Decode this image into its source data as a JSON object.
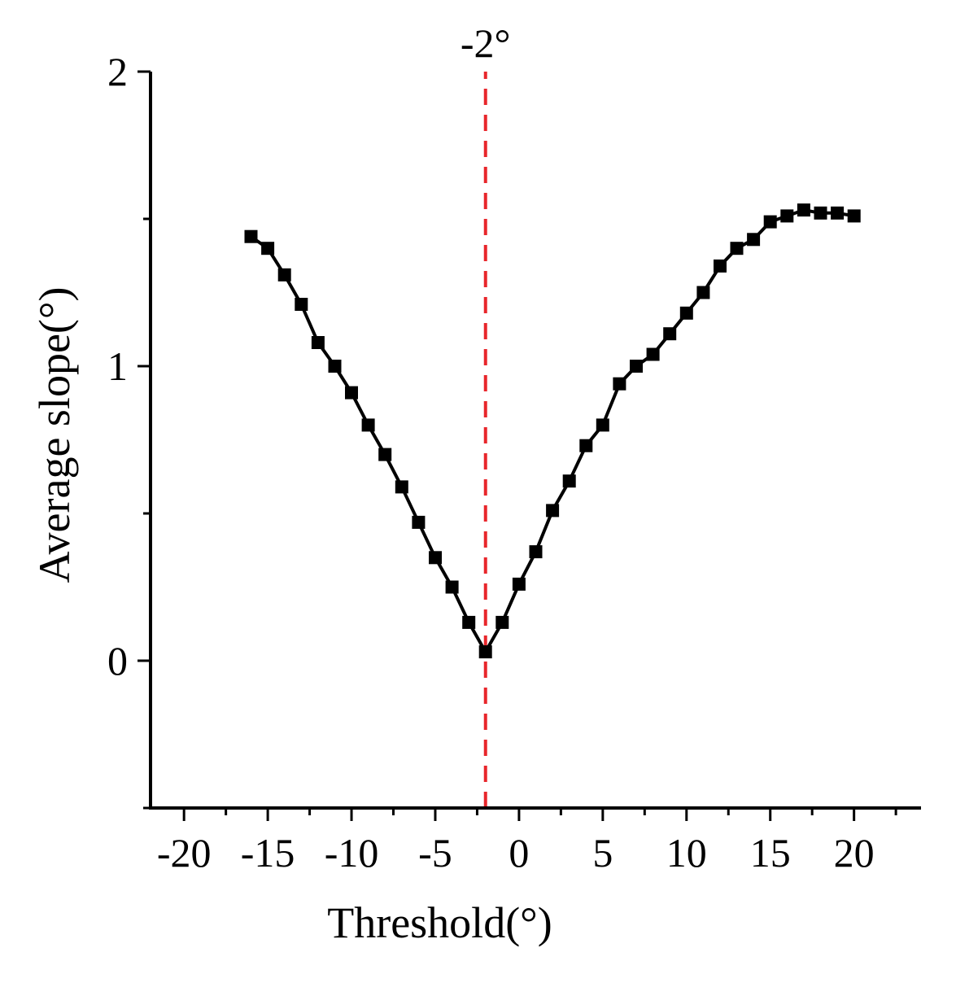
{
  "chart_data": {
    "type": "line",
    "title": "",
    "xlabel": "Threshold(°)",
    "ylabel": "Average slope(°)",
    "xlim": [
      -22,
      24
    ],
    "ylim": [
      -0.5,
      2
    ],
    "x_ticks": [
      -20,
      -15,
      -10,
      -5,
      0,
      5,
      10,
      15,
      20
    ],
    "x_tick_labels": [
      "-20",
      "-15",
      "-10",
      "-5",
      "0",
      "5",
      "10",
      "15",
      "20"
    ],
    "y_ticks": [
      0,
      1,
      2
    ],
    "y_tick_labels": [
      "0",
      "1",
      "2"
    ],
    "grid": false,
    "legend": "none",
    "series": [
      {
        "x": [
          -16,
          -15,
          -14,
          -13,
          -12,
          -11,
          -10,
          -9,
          -8,
          -7,
          -6,
          -5,
          -4,
          -3,
          -2,
          -1,
          0,
          1,
          2,
          3,
          4,
          5,
          6,
          7,
          8,
          9,
          10,
          11,
          12,
          13,
          14,
          15,
          16,
          17,
          18,
          19,
          20
        ],
        "values": [
          1.44,
          1.4,
          1.31,
          1.21,
          1.08,
          1.0,
          0.91,
          0.8,
          0.7,
          0.59,
          0.47,
          0.35,
          0.25,
          0.13,
          0.03,
          0.13,
          0.26,
          0.37,
          0.51,
          0.61,
          0.73,
          0.8,
          0.94,
          1.0,
          1.04,
          1.11,
          1.18,
          1.25,
          1.34,
          1.4,
          1.43,
          1.49,
          1.51,
          1.53,
          1.52,
          1.52,
          1.51
        ],
        "color": "#000000",
        "marker": "square"
      }
    ],
    "annotations": [
      {
        "type": "vline",
        "x": -2,
        "label": "-2°",
        "color": "#e8262b",
        "style": "dashed"
      }
    ]
  }
}
